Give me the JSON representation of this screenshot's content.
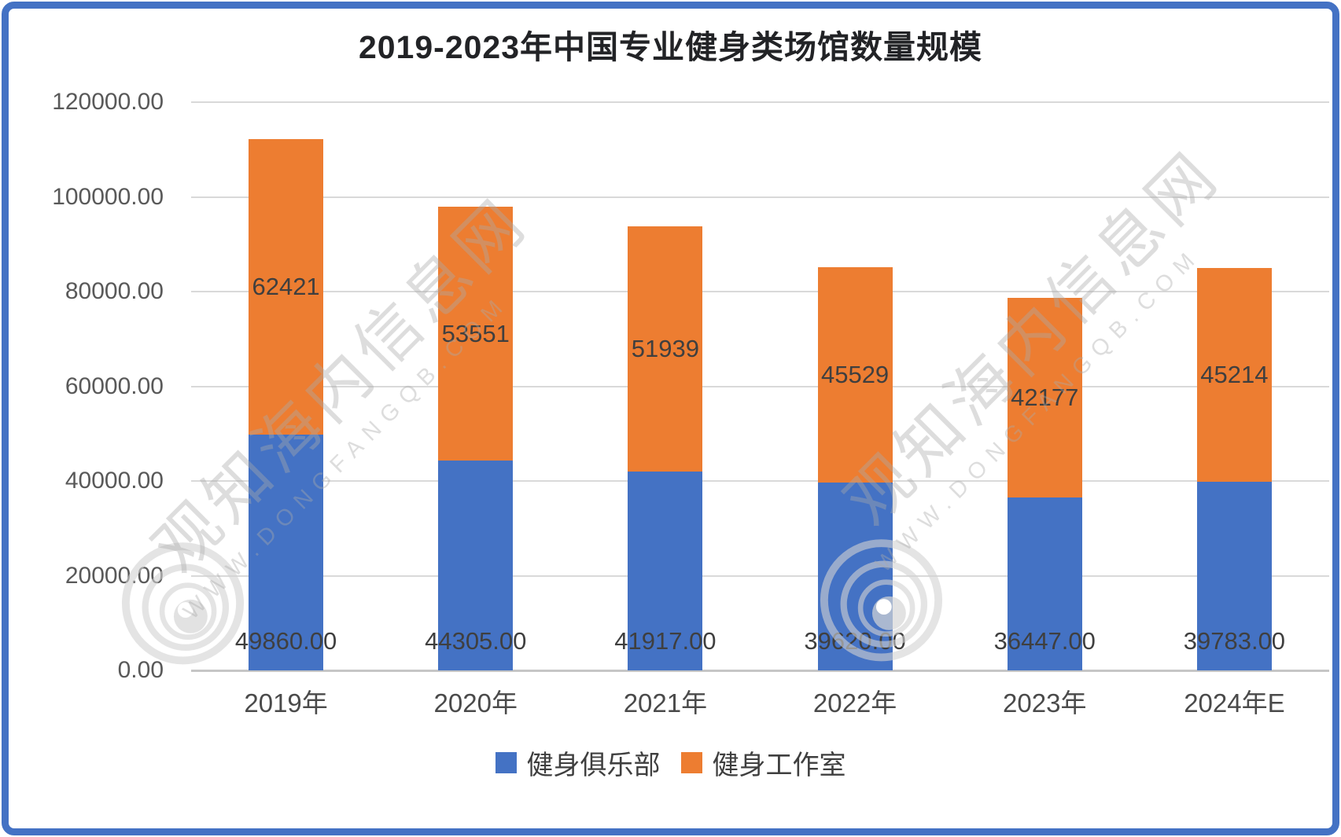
{
  "title": "2019-2023年中国专业健身类场馆数量规模",
  "watermark": {
    "brand": "观知海内信息网",
    "site": "WWW.DONGFANGQB.COM"
  },
  "colors": {
    "series_blue": "#4472C4",
    "series_orange": "#ED7D31",
    "frame_border": "#4472C4",
    "gridline": "#D9D9D9",
    "axis_text": "#595959",
    "label_text": "#3F3F3F"
  },
  "chart_data": {
    "type": "bar",
    "stacked": true,
    "title": "2019-2023年中国专业健身类场馆数量规模",
    "categories": [
      "2019年",
      "2020年",
      "2021年",
      "2022年",
      "2023年",
      "2024年E"
    ],
    "series": [
      {
        "name": "健身俱乐部",
        "color": "#4472C4",
        "values": [
          49860,
          44305,
          41917,
          39620,
          36447,
          39783
        ],
        "labels": [
          "49860.00",
          "44305.00",
          "41917.00",
          "39620.00",
          "36447.00",
          "39783.00"
        ]
      },
      {
        "name": "健身工作室",
        "color": "#ED7D31",
        "values": [
          62421,
          53551,
          51939,
          45529,
          42177,
          45214
        ],
        "labels": [
          "62421",
          "53551",
          "51939",
          "45529",
          "42177",
          "45214"
        ]
      }
    ],
    "xlabel": "",
    "ylabel": "",
    "ylim": [
      0,
      120000
    ],
    "ytick_step": 20000,
    "ytick_labels": [
      "0.00",
      "20000.00",
      "40000.00",
      "60000.00",
      "80000.00",
      "100000.00",
      "120000.00"
    ],
    "grid": true,
    "legend_position": "bottom"
  }
}
